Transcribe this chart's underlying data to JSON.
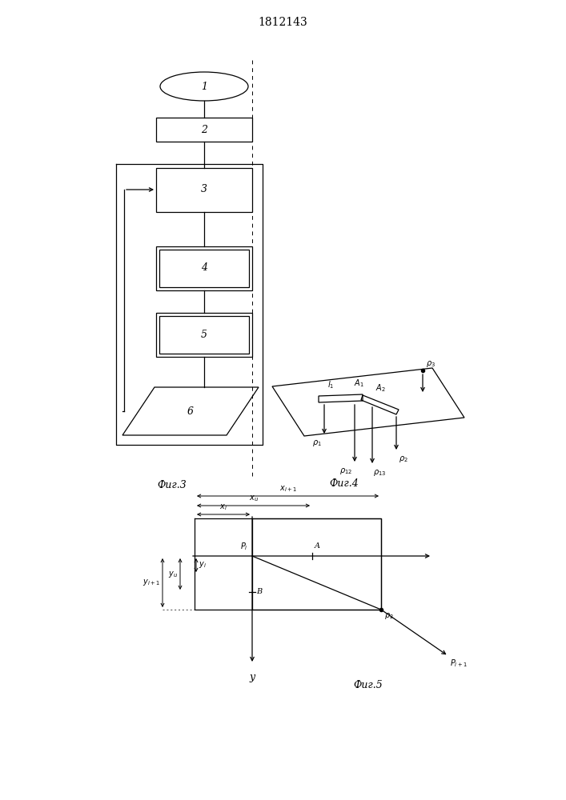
{
  "title": "1812143",
  "bg_color": "#ffffff",
  "fig3_label": "Фиг.3",
  "fig4_label": "Фиг.4",
  "fig5_label": "Фиг.5"
}
